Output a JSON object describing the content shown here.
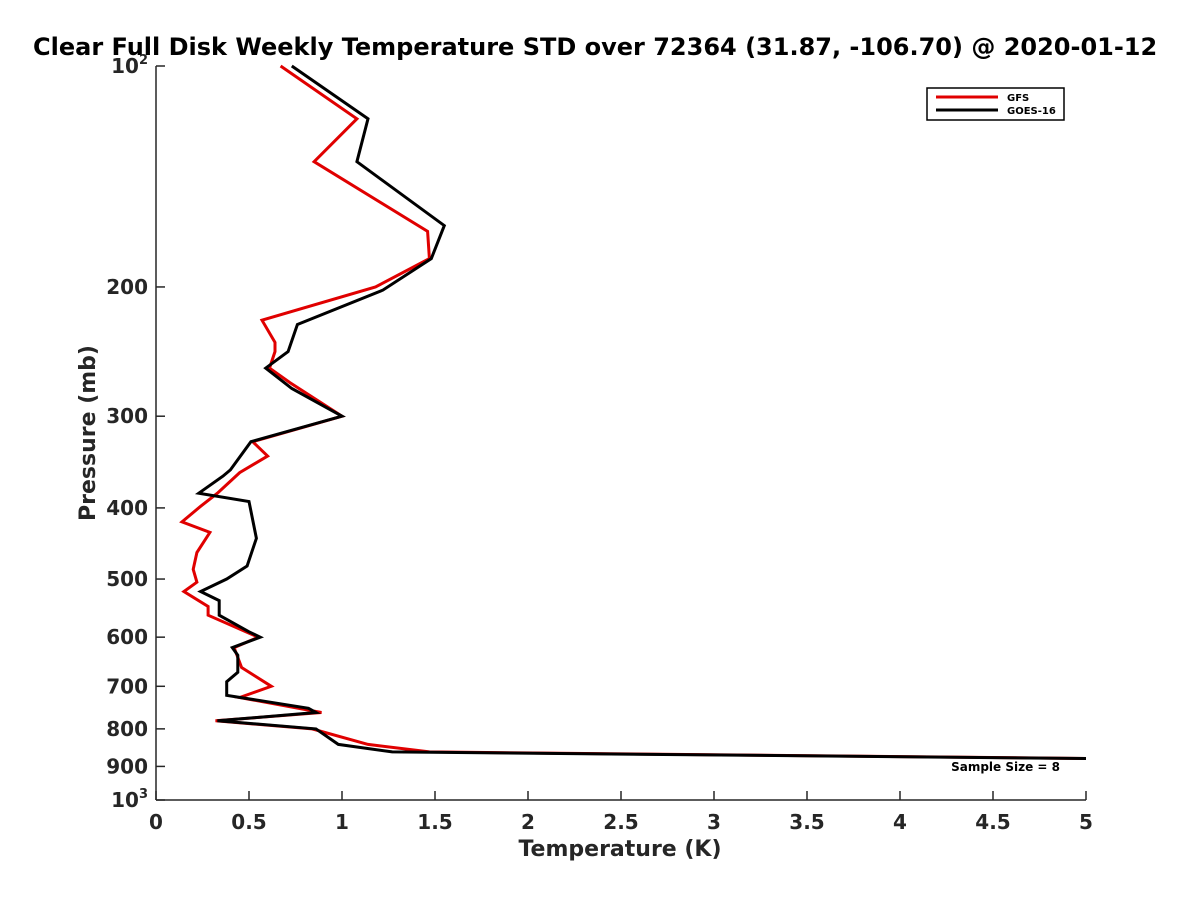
{
  "chart_data": {
    "type": "line",
    "title": "Clear Full Disk Weekly Temperature STD over 72364 (31.87, -106.70) @ 2020-01-12",
    "xlabel": "Temperature (K)",
    "ylabel": "Pressure (mb)",
    "xlim": [
      0,
      5
    ],
    "ylim": [
      100,
      1000
    ],
    "y_scale": "log",
    "y_reversed": true,
    "grid": false,
    "legend_position": "top-right",
    "x_ticks": [
      {
        "value": 0,
        "label": "0"
      },
      {
        "value": 0.5,
        "label": "0.5"
      },
      {
        "value": 1,
        "label": "1"
      },
      {
        "value": 1.5,
        "label": "1.5"
      },
      {
        "value": 2,
        "label": "2"
      },
      {
        "value": 2.5,
        "label": "2.5"
      },
      {
        "value": 3,
        "label": "3"
      },
      {
        "value": 3.5,
        "label": "3.5"
      },
      {
        "value": 4,
        "label": "4"
      },
      {
        "value": 4.5,
        "label": "4.5"
      },
      {
        "value": 5,
        "label": "5"
      }
    ],
    "y_ticks": [
      {
        "value": 100,
        "label": "10",
        "sup": "2"
      },
      {
        "value": 200,
        "label": "200",
        "sup": ""
      },
      {
        "value": 300,
        "label": "300",
        "sup": ""
      },
      {
        "value": 400,
        "label": "400",
        "sup": ""
      },
      {
        "value": 500,
        "label": "500",
        "sup": ""
      },
      {
        "value": 600,
        "label": "600",
        "sup": ""
      },
      {
        "value": 700,
        "label": "700",
        "sup": ""
      },
      {
        "value": 800,
        "label": "800",
        "sup": ""
      },
      {
        "value": 900,
        "label": "900",
        "sup": ""
      },
      {
        "value": 1000,
        "label": "10",
        "sup": "3"
      }
    ],
    "annotation": "Sample Size = 8",
    "series": [
      {
        "name": "GFS",
        "color": "#e00000",
        "points": [
          [
            0.67,
            100
          ],
          [
            1.08,
            118
          ],
          [
            0.85,
            135
          ],
          [
            1.46,
            168
          ],
          [
            1.47,
            183
          ],
          [
            1.18,
            200
          ],
          [
            0.57,
            222
          ],
          [
            0.64,
            238
          ],
          [
            0.64,
            245
          ],
          [
            0.61,
            258
          ],
          [
            0.72,
            270
          ],
          [
            1.0,
            300
          ],
          [
            0.52,
            325
          ],
          [
            0.6,
            340
          ],
          [
            0.45,
            358
          ],
          [
            0.33,
            382
          ],
          [
            0.24,
            398
          ],
          [
            0.14,
            418
          ],
          [
            0.29,
            432
          ],
          [
            0.22,
            460
          ],
          [
            0.2,
            485
          ],
          [
            0.22,
            505
          ],
          [
            0.15,
            520
          ],
          [
            0.28,
            545
          ],
          [
            0.28,
            560
          ],
          [
            0.55,
            600
          ],
          [
            0.42,
            620
          ],
          [
            0.46,
            660
          ],
          [
            0.62,
            700
          ],
          [
            0.45,
            725
          ],
          [
            0.89,
            760
          ],
          [
            0.32,
            780
          ],
          [
            0.84,
            800
          ],
          [
            1.14,
            840
          ],
          [
            1.47,
            860
          ],
          [
            5.0,
            878
          ]
        ]
      },
      {
        "name": "GOES-16",
        "color": "#000000",
        "points": [
          [
            0.73,
            100
          ],
          [
            1.14,
            118
          ],
          [
            1.08,
            135
          ],
          [
            1.55,
            165
          ],
          [
            1.48,
            183
          ],
          [
            1.22,
            202
          ],
          [
            0.76,
            225
          ],
          [
            0.71,
            245
          ],
          [
            0.59,
            258
          ],
          [
            0.73,
            275
          ],
          [
            1.0,
            300
          ],
          [
            0.51,
            325
          ],
          [
            0.4,
            355
          ],
          [
            0.36,
            362
          ],
          [
            0.23,
            382
          ],
          [
            0.5,
            392
          ],
          [
            0.54,
            440
          ],
          [
            0.49,
            480
          ],
          [
            0.38,
            500
          ],
          [
            0.24,
            520
          ],
          [
            0.34,
            535
          ],
          [
            0.34,
            560
          ],
          [
            0.5,
            590
          ],
          [
            0.56,
            600
          ],
          [
            0.41,
            620
          ],
          [
            0.44,
            635
          ],
          [
            0.44,
            670
          ],
          [
            0.38,
            690
          ],
          [
            0.38,
            720
          ],
          [
            0.82,
            750
          ],
          [
            0.86,
            760
          ],
          [
            0.33,
            780
          ],
          [
            0.86,
            800
          ],
          [
            0.98,
            840
          ],
          [
            1.27,
            860
          ],
          [
            5.0,
            878
          ]
        ]
      }
    ]
  }
}
